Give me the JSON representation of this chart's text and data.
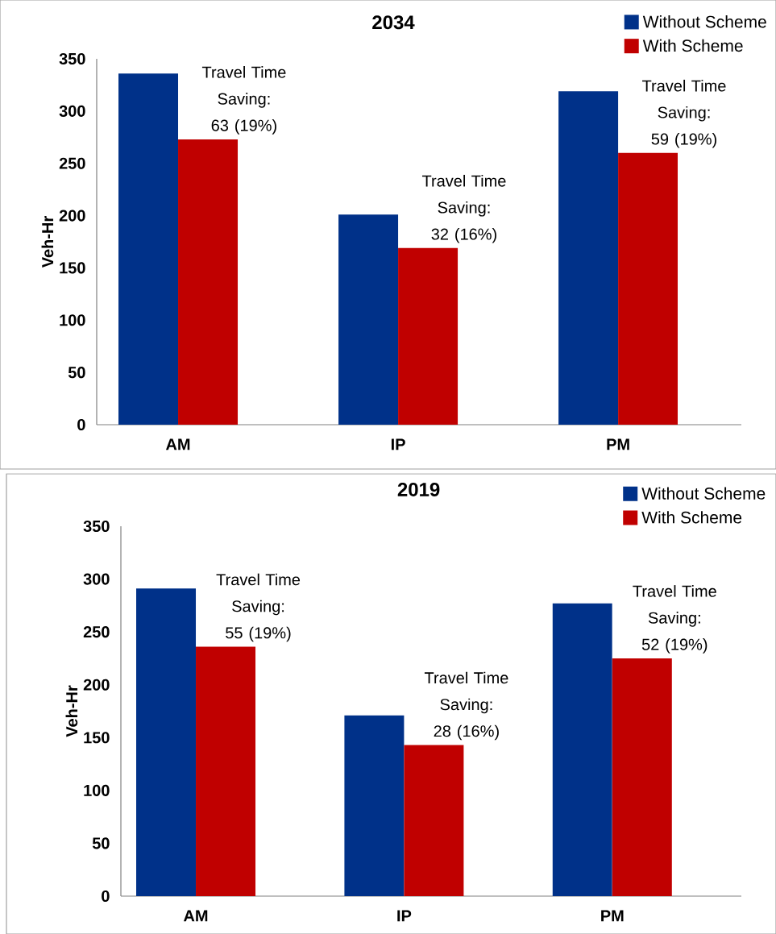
{
  "chart_data": [
    {
      "type": "bar",
      "title": "2034",
      "ylabel": "Veh-Hr",
      "categories": [
        "AM",
        "IP",
        "PM"
      ],
      "series": [
        {
          "name": "Without Scheme",
          "color": "#003189",
          "values": [
            336,
            201,
            319
          ]
        },
        {
          "name": "With Scheme",
          "color": "#c00000",
          "values": [
            273,
            169,
            260
          ]
        }
      ],
      "ylim": [
        0,
        350
      ],
      "yticks": [
        0,
        50,
        100,
        150,
        200,
        250,
        300,
        350
      ],
      "legend": "top right",
      "annotations": [
        {
          "text": "Travel Time Saving: 63 (19%)",
          "x": "AM",
          "y": 273
        },
        {
          "text": "Travel Time Saving: 32 (16%)",
          "x": "IP",
          "y": 169
        },
        {
          "text": "Travel Time Saving: 59 (19%)",
          "x": "PM",
          "y": 260
        }
      ]
    },
    {
      "type": "bar",
      "title": "2019",
      "ylabel": "Veh-Hr",
      "categories": [
        "AM",
        "IP",
        "PM"
      ],
      "series": [
        {
          "name": "Without Scheme",
          "color": "#003189",
          "values": [
            291,
            171,
            277
          ]
        },
        {
          "name": "With Scheme",
          "color": "#c00000",
          "values": [
            236,
            143,
            225
          ]
        }
      ],
      "ylim": [
        0,
        350
      ],
      "yticks": [
        0,
        50,
        100,
        150,
        200,
        250,
        300,
        350
      ],
      "legend": "top right",
      "annotations": [
        {
          "text": "Travel Time Saving: 55 (19%)",
          "x": "AM",
          "y": 236
        },
        {
          "text": "Travel Time Saving: 28 (16%)",
          "x": "IP",
          "y": 143
        },
        {
          "text": "Travel Time Saving: 52 (19%)",
          "x": "PM",
          "y": 225
        }
      ]
    }
  ]
}
